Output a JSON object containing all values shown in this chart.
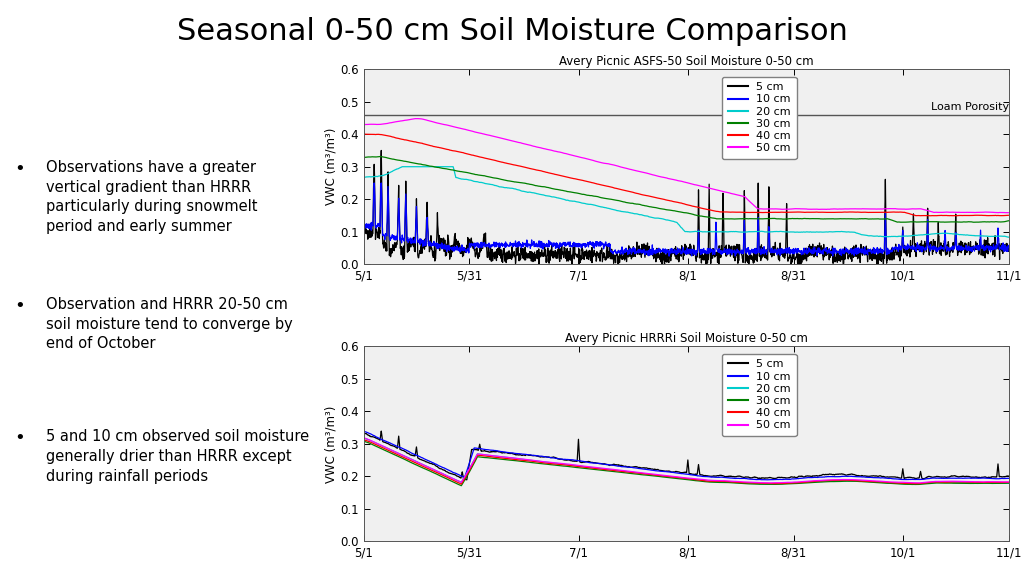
{
  "title": "Seasonal 0-50 cm Soil Moisture Comparison",
  "title_fontsize": 22,
  "bullet_points": [
    "Observations have a greater\nvertical gradient than HRRR\nparticularly during snowmelt\nperiod and early summer",
    "Observation and HRRR 20-50 cm\nsoil moisture tend to converge by\nend of October",
    "5 and 10 cm observed soil moisture\ngenerally drier than HRRR except\nduring rainfall periods"
  ],
  "plot1_title": "Avery Picnic ASFS-50 Soil Moisture 0-50 cm",
  "plot2_title": "Avery Picnic HRRRi Soil Moisture 0-50 cm",
  "ylabel": "VWC (m³/m³)",
  "xtick_labels": [
    "5/1",
    "5/31",
    "7/1",
    "8/1",
    "8/31",
    "10/1",
    "11/1"
  ],
  "ylim": [
    0.0,
    0.6
  ],
  "yticks": [
    0.0,
    0.1,
    0.2,
    0.3,
    0.4,
    0.5,
    0.6
  ],
  "loam_porosity": 0.46,
  "loam_label": "Loam Porosity",
  "colors": {
    "5cm": "#000000",
    "10cm": "#0000ff",
    "20cm": "#00cccc",
    "30cm": "#008000",
    "40cm": "#ff0000",
    "50cm": "#ff00ff"
  },
  "legend_labels": [
    "5 cm",
    "10 cm",
    "20 cm",
    "30 cm",
    "40 cm",
    "50 cm"
  ],
  "background_color": "#ffffff"
}
